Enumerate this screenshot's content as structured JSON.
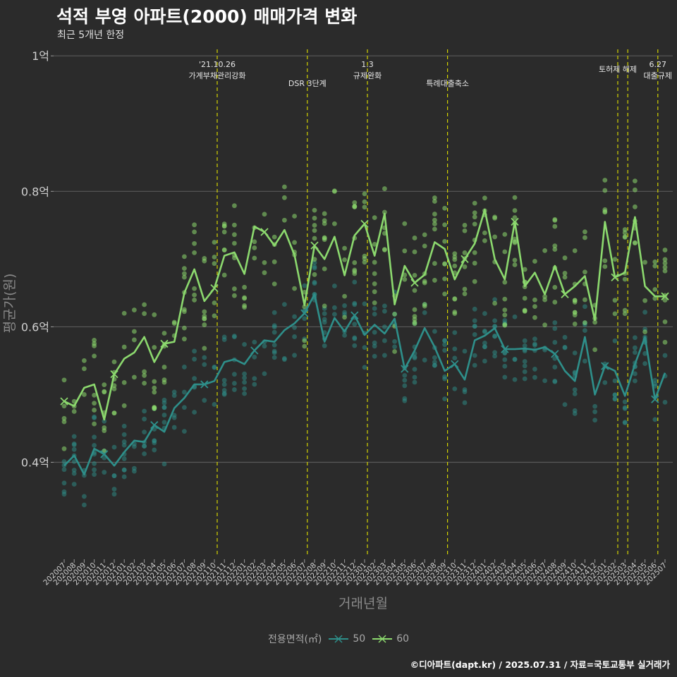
{
  "title": "석적 부영 아파트(2000) 매매가격 변화",
  "subtitle": "최근 5개년 한정",
  "caption": "©디아파트(dapt.kr) / 2025.07.31 / 자료=국토교통부 실거래가",
  "colors": {
    "background": "#2b2b2b",
    "grid": "#5a5a5a",
    "event_line": "#d4d400",
    "series_50": "#2e8f8a",
    "series_60": "#8cd96e"
  },
  "chart_data": {
    "type": "line",
    "xlabel": "거래년월",
    "ylabel": "평균가(원)",
    "ylim": [
      0.26,
      1.02
    ],
    "y_ticks": [
      0.4,
      0.6,
      0.8,
      1.0
    ],
    "y_tick_labels": [
      "0.4억",
      "0.6억",
      "0.8억",
      "1억"
    ],
    "grid": true,
    "legend_title": "전용면적(㎡)",
    "legend_position": "bottom",
    "categories": [
      "202007",
      "202008",
      "202009",
      "202010",
      "202011",
      "202012",
      "202101",
      "202102",
      "202103",
      "202104",
      "202105",
      "202106",
      "202107",
      "202108",
      "202109",
      "202110",
      "202111",
      "202112",
      "202201",
      "202202",
      "202203",
      "202204",
      "202205",
      "202206",
      "202207",
      "202208",
      "202209",
      "202210",
      "202211",
      "202212",
      "202301",
      "202302",
      "202303",
      "202304",
      "202305",
      "202306",
      "202307",
      "202308",
      "202309",
      "202310",
      "202311",
      "202312",
      "202401",
      "202402",
      "202403",
      "202404",
      "202405",
      "202406",
      "202407",
      "202408",
      "202409",
      "202410",
      "202411",
      "202412",
      "202501",
      "202502",
      "202503",
      "202504",
      "202505",
      "202506",
      "202507"
    ],
    "series": [
      {
        "name": "50",
        "color": "#2e8f8a",
        "values": [
          0.395,
          0.41,
          0.382,
          0.42,
          0.412,
          0.395,
          0.415,
          0.432,
          0.43,
          0.455,
          0.445,
          0.48,
          0.495,
          0.515,
          0.515,
          0.52,
          0.548,
          0.552,
          0.545,
          0.565,
          0.58,
          0.578,
          0.595,
          0.605,
          0.62,
          0.648,
          0.578,
          0.613,
          0.593,
          0.617,
          0.588,
          0.603,
          0.59,
          0.612,
          0.538,
          0.565,
          0.598,
          0.57,
          0.535,
          0.545,
          0.522,
          0.58,
          0.587,
          0.598,
          0.567,
          0.567,
          0.568,
          0.566,
          0.57,
          0.56,
          0.535,
          0.52,
          0.585,
          0.5,
          0.542,
          0.535,
          0.498,
          0.545,
          0.585,
          0.493,
          0.532
        ]
      },
      {
        "name": "60",
        "color": "#8cd96e",
        "values": [
          0.49,
          0.483,
          0.51,
          0.515,
          0.463,
          0.53,
          0.553,
          0.562,
          0.585,
          0.548,
          0.575,
          0.578,
          0.65,
          0.685,
          0.638,
          0.657,
          0.705,
          0.71,
          0.678,
          0.748,
          0.74,
          0.72,
          0.743,
          0.706,
          0.632,
          0.72,
          0.7,
          0.733,
          0.676,
          0.735,
          0.752,
          0.705,
          0.767,
          0.633,
          0.69,
          0.665,
          0.677,
          0.725,
          0.715,
          0.67,
          0.7,
          0.723,
          0.773,
          0.7,
          0.67,
          0.755,
          0.66,
          0.68,
          0.648,
          0.69,
          0.648,
          0.66,
          0.675,
          0.61,
          0.755,
          0.673,
          0.68,
          0.762,
          0.66,
          0.645,
          0.645
        ]
      }
    ],
    "events": [
      {
        "index": 15,
        "date": "'21.10.26",
        "label": "가계부채관리강화"
      },
      {
        "index": 24,
        "date": "",
        "label": "DSR 3단계"
      },
      {
        "index": 30,
        "date": "1.3",
        "label": "규제완화"
      },
      {
        "index": 38,
        "date": "",
        "label": "특례대출축소"
      },
      {
        "index": 55,
        "date": "",
        "label": "토허제 해제"
      },
      {
        "index": 56,
        "date": "",
        "label": ""
      },
      {
        "index": 59,
        "date": "6.27",
        "label": "대출규제"
      }
    ]
  }
}
